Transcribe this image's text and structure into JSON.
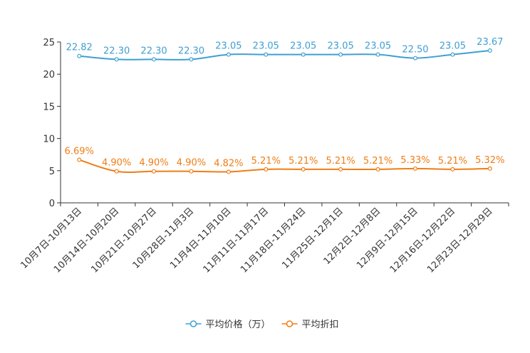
{
  "chart_data": {
    "type": "line",
    "title": "",
    "xlabel": "",
    "ylabel": "",
    "ylim": [
      0,
      25
    ],
    "yticks": [
      0,
      5,
      10,
      15,
      20,
      25
    ],
    "grid": false,
    "legend_position": "bottom-center",
    "categories": [
      "10月7日-10月13日",
      "10月14日-10月20日",
      "10月21日-10月27日",
      "10月28日-11月3日",
      "11月4日-11月10日",
      "11月11日-11月17日",
      "11月18日-11月24日",
      "11月25日-12月1日",
      "12月2日-12月8日",
      "12月9日-12月15日",
      "12月16日-12月22日",
      "12月23日-12月29日"
    ],
    "series": [
      {
        "name": "平均价格（万）",
        "color": "#3f9fd2",
        "values": [
          22.82,
          22.3,
          22.3,
          22.3,
          23.05,
          23.05,
          23.05,
          23.05,
          23.05,
          22.5,
          23.05,
          23.67
        ],
        "labels": [
          "22.82",
          "22.30",
          "22.30",
          "22.30",
          "23.05",
          "23.05",
          "23.05",
          "23.05",
          "23.05",
          "22.50",
          "23.05",
          "23.67"
        ]
      },
      {
        "name": "平均折扣",
        "color": "#f07d14",
        "values": [
          6.69,
          4.9,
          4.9,
          4.9,
          4.82,
          5.21,
          5.21,
          5.21,
          5.21,
          5.33,
          5.21,
          5.32
        ],
        "labels": [
          "6.69%",
          "4.90%",
          "4.90%",
          "4.90%",
          "4.82%",
          "5.21%",
          "5.21%",
          "5.21%",
          "5.21%",
          "5.33%",
          "5.21%",
          "5.32%"
        ]
      }
    ]
  }
}
